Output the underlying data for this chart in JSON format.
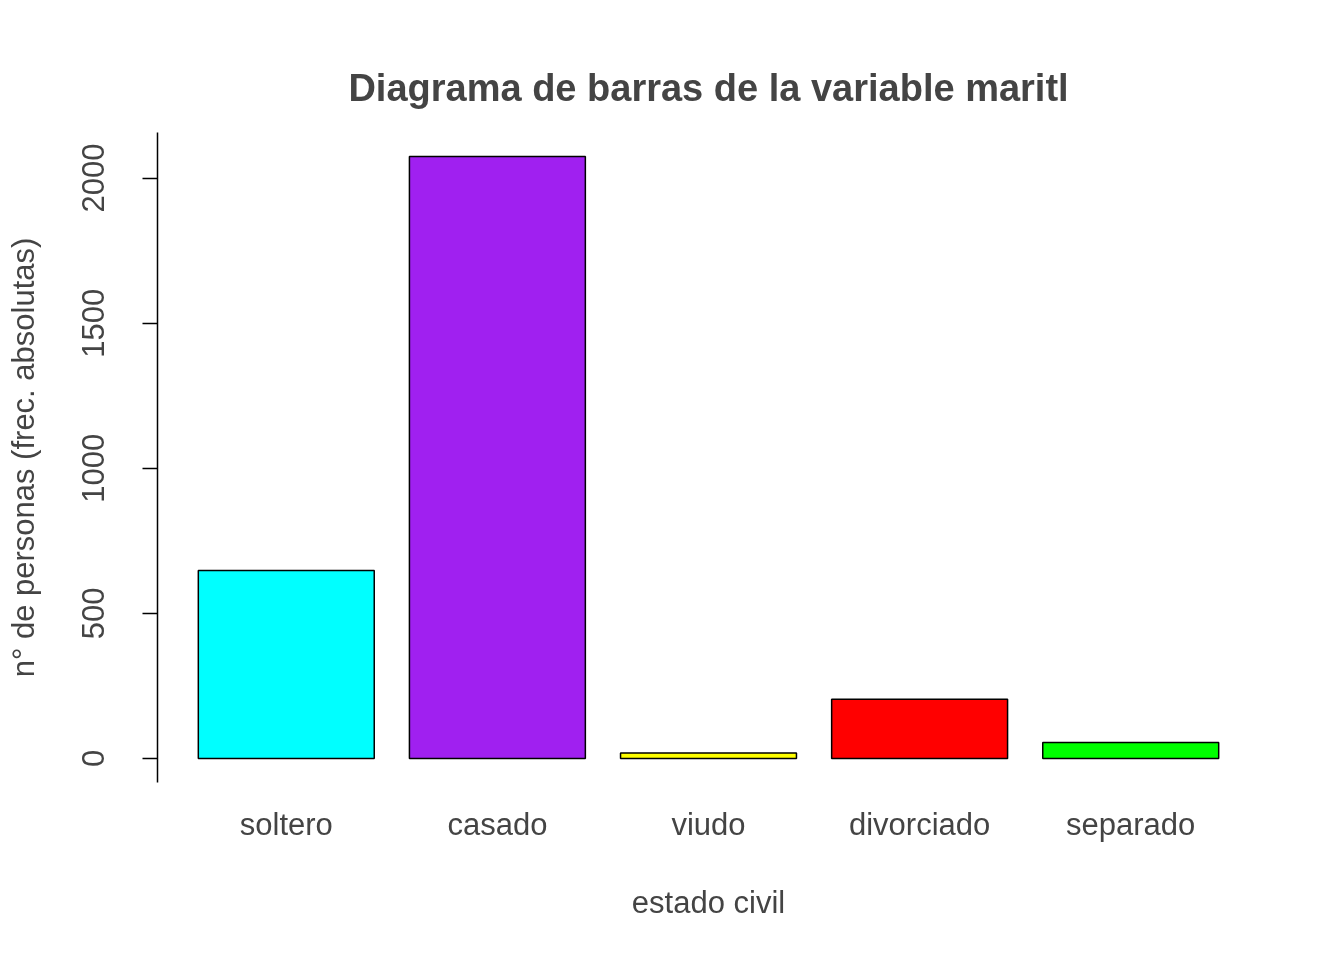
{
  "chart_data": {
    "type": "bar",
    "title": "Diagrama de barras de la variable maritl",
    "xlabel": "estado civil",
    "ylabel": "n° de personas (frec. absolutas)",
    "categories": [
      "soltero",
      "casado",
      "viudo",
      "divorciado",
      "separado"
    ],
    "values": [
      648,
      2074,
      19,
      204,
      55
    ],
    "colors": [
      "#00ffff",
      "#a020f0",
      "#ffff00",
      "#ff0000",
      "#00ff00"
    ],
    "ylim": [
      -83,
      2157
    ],
    "yticks": [
      0,
      500,
      1000,
      1500,
      2000
    ],
    "grid": false
  }
}
